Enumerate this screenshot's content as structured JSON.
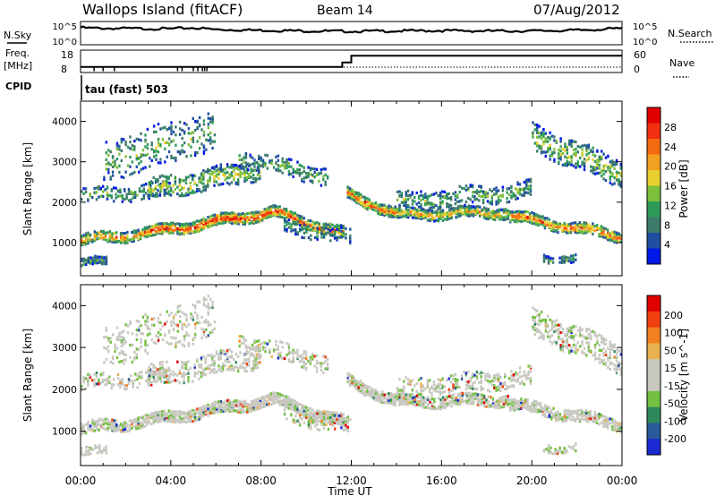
{
  "header": {
    "station": "Wallops Island (fitACF)",
    "beam": "Beam 14",
    "date": "07/Aug/2012"
  },
  "status_panels": {
    "nsky_label": "N.Sky",
    "nsearch_label": "N.Search",
    "freq_label": "Freq.",
    "freq_unit": "[MHz]",
    "nave_label": "Nave",
    "cpid_label": "CPID",
    "cpid_value": "tau (fast) 503",
    "noise_left_ticks": [
      "10^5",
      "10^0"
    ],
    "noise_right_ticks": [
      "10^5",
      "10^0"
    ],
    "freq_left_ticks": [
      "18",
      "8"
    ],
    "freq_right_ticks": [
      "60",
      "0"
    ]
  },
  "colors": {
    "power_scale": [
      "#0018e8",
      "#1f4fa0",
      "#3c7a6a",
      "#2e9a5a",
      "#7cbf3a",
      "#e8d030",
      "#f2a020",
      "#f46a10",
      "#f03010",
      "#e00000"
    ],
    "velocity_scale": [
      "#1a2ad0",
      "#2a5a9a",
      "#2e8a5a",
      "#74c040",
      "#c8c8c0",
      "#c8c8c0",
      "#e8b050",
      "#f08020",
      "#f04010",
      "#e00000"
    ]
  },
  "chart_data": [
    {
      "type": "line",
      "name": "noise",
      "ylabel": "",
      "x_range": [
        0,
        24
      ],
      "series": [
        {
          "name": "N.Sky",
          "x": [
            0,
            0.3,
            2,
            4,
            5,
            6,
            8,
            10,
            12,
            14,
            16,
            18,
            20,
            22,
            23.5,
            24
          ],
          "y": [
            4.6,
            4.4,
            4.3,
            4.2,
            4.5,
            4.0,
            3.8,
            3.6,
            3.5,
            3.6,
            3.7,
            3.6,
            3.6,
            3.8,
            4.2,
            4.3
          ]
        }
      ]
    },
    {
      "type": "line",
      "name": "frequency",
      "ylim": [
        8,
        18
      ],
      "series": [
        {
          "name": "Freq.",
          "x": [
            0,
            11.6,
            11.6,
            12,
            12,
            24
          ],
          "y": [
            10.5,
            10.5,
            12.5,
            12.5,
            15.5,
            15.5
          ]
        }
      ]
    },
    {
      "type": "heatmap",
      "name": "power",
      "xlabel": "",
      "ylabel": "Slant Range [km]",
      "x_range": [
        0,
        24
      ],
      "y_range": [
        180,
        4500
      ],
      "yticks": [
        1000,
        2000,
        3000,
        4000
      ],
      "colorbar_label": "Power [dB]",
      "colorbar_ticks": [
        4,
        8,
        12,
        16,
        20,
        24,
        28
      ],
      "xticks": [
        "00:00",
        "04:00",
        "08:00",
        "12:00",
        "16:00",
        "20:00",
        "00:00"
      ]
    },
    {
      "type": "heatmap",
      "name": "velocity",
      "xlabel": "Time UT",
      "ylabel": "Slant Range [km]",
      "x_range": [
        0,
        24
      ],
      "y_range": [
        180,
        4500
      ],
      "yticks": [
        1000,
        2000,
        3000,
        4000
      ],
      "colorbar_label": "Velocity [m s^-1]",
      "colorbar_ticks": [
        200,
        100,
        50,
        15,
        -15,
        -50,
        -100,
        -200
      ],
      "xticks": [
        "00:00",
        "04:00",
        "08:00",
        "12:00",
        "16:00",
        "20:00",
        "00:00"
      ]
    }
  ]
}
